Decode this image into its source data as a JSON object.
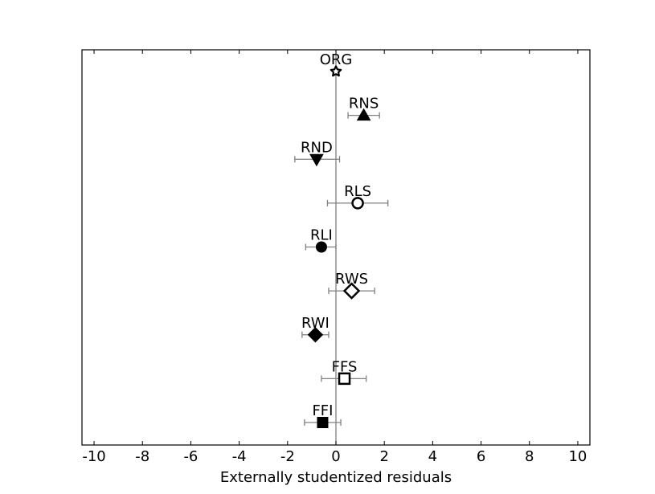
{
  "chart_data": {
    "type": "scatter",
    "xlabel": "Externally studentized residuals",
    "xlim": [
      -10.5,
      10.5
    ],
    "xticks": [
      -10,
      -8,
      -6,
      -4,
      -2,
      0,
      2,
      4,
      6,
      8,
      10
    ],
    "reference_line_x": 0,
    "grid": false,
    "points": [
      {
        "label": "ORG",
        "x": 0.0,
        "err_low": 0.0,
        "err_high": 0.0,
        "marker": "star-open"
      },
      {
        "label": "RNS",
        "x": 1.15,
        "err_low": 0.5,
        "err_high": 1.8,
        "marker": "triangle-up-filled"
      },
      {
        "label": "RND",
        "x": -0.8,
        "err_low": -1.7,
        "err_high": 0.15,
        "marker": "triangle-down-filled"
      },
      {
        "label": "RLS",
        "x": 0.9,
        "err_low": -0.35,
        "err_high": 2.15,
        "marker": "circle-open"
      },
      {
        "label": "RLI",
        "x": -0.6,
        "err_low": -1.25,
        "err_high": 0.0,
        "marker": "circle-filled"
      },
      {
        "label": "RWS",
        "x": 0.65,
        "err_low": -0.3,
        "err_high": 1.6,
        "marker": "diamond-open"
      },
      {
        "label": "RWI",
        "x": -0.85,
        "err_low": -1.4,
        "err_high": -0.3,
        "marker": "diamond-filled"
      },
      {
        "label": "FFS",
        "x": 0.35,
        "err_low": -0.6,
        "err_high": 1.25,
        "marker": "square-open"
      },
      {
        "label": "FFI",
        "x": -0.55,
        "err_low": -1.3,
        "err_high": 0.2,
        "marker": "square-filled"
      }
    ]
  }
}
